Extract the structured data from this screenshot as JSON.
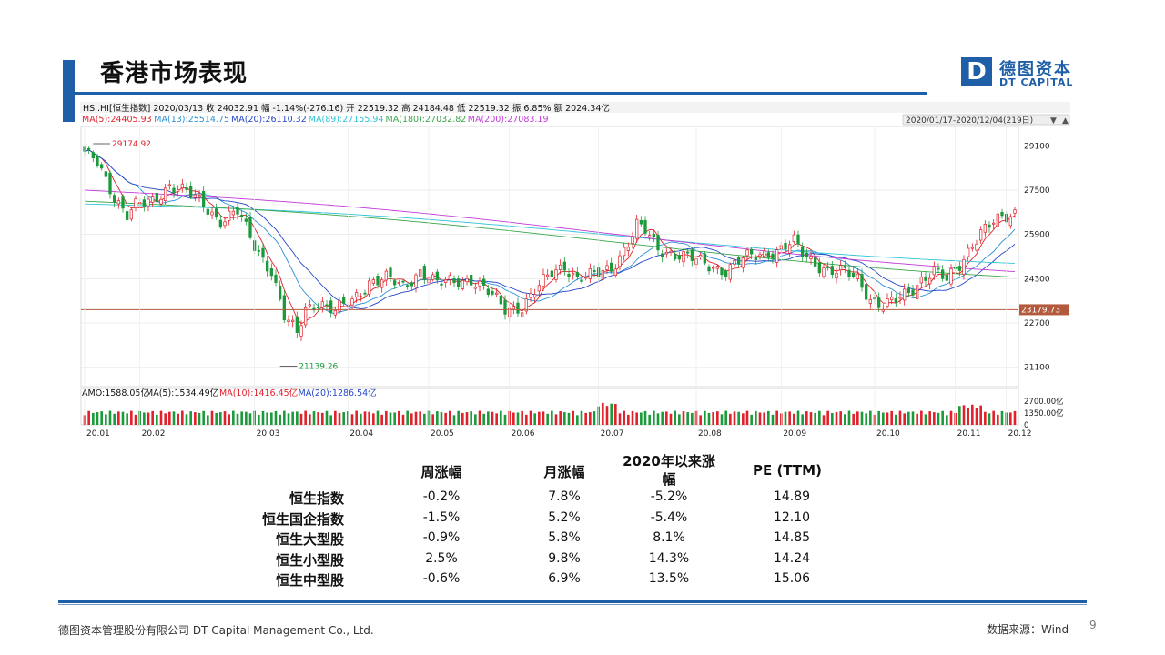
{
  "title": "香港市场表现",
  "logo": {
    "mark": "D",
    "cn": "德图资本",
    "en": "DT CAPITAL"
  },
  "info_line1": "HSI.HI[恒生指数]   2020/03/13   收 24032.91   幅 -1.14%(-276.16)   开 22519.32   高 24184.48   低 22519.32   振 6.85%   额 2024.34亿",
  "ma_legend": [
    {
      "text": "MA(5):24405.93",
      "color": "#e0212b"
    },
    {
      "text": "MA(13):25514.75",
      "color": "#2a8fd6"
    },
    {
      "text": "MA(20):26110.32",
      "color": "#2345c8"
    },
    {
      "text": "MA(89):27155.94",
      "color": "#2fc4d6"
    },
    {
      "text": "MA(180):27032.82",
      "color": "#3aa64a"
    },
    {
      "text": "MA(200):27083.19",
      "color": "#c23bd9"
    }
  ],
  "date_range": "2020/01/17-2020/12/04(219日)",
  "colors": {
    "up": "#e0212b",
    "down": "#1a9a3a",
    "ref_line": "#b45a3c",
    "brand": "#1f5fa8"
  },
  "chart_data": {
    "type": "candlestick",
    "y_ticks": [
      "29100",
      "27500",
      "25900",
      "24300",
      "22700",
      "21100"
    ],
    "ylim": [
      20400,
      29800
    ],
    "x_ticks": [
      "20.01",
      "20.02",
      "20.03",
      "20.04",
      "20.05",
      "20.06",
      "20.07",
      "20.08",
      "20.09",
      "20.10",
      "20.11",
      "20.12"
    ],
    "max_label": "29174.92",
    "min_label": "21139.26",
    "ref_value": 23179.73,
    "ref_label": "23179.73",
    "close_anchors": [
      [
        0,
        28800
      ],
      [
        3,
        28500
      ],
      [
        7,
        27300
      ],
      [
        10,
        26600
      ],
      [
        12,
        26900
      ],
      [
        16,
        27100
      ],
      [
        20,
        27700
      ],
      [
        24,
        27400
      ],
      [
        28,
        27000
      ],
      [
        32,
        26400
      ],
      [
        36,
        26700
      ],
      [
        40,
        25500
      ],
      [
        44,
        24600
      ],
      [
        47,
        22900
      ],
      [
        50,
        22300
      ],
      [
        52,
        23200
      ],
      [
        55,
        23500
      ],
      [
        59,
        23100
      ],
      [
        63,
        23500
      ],
      [
        67,
        24200
      ],
      [
        71,
        24300
      ],
      [
        75,
        24000
      ],
      [
        79,
        24600
      ],
      [
        83,
        24100
      ],
      [
        87,
        24200
      ],
      [
        91,
        24300
      ],
      [
        95,
        23800
      ],
      [
        99,
        23200
      ],
      [
        103,
        23300
      ],
      [
        107,
        24000
      ],
      [
        110,
        24500
      ],
      [
        113,
        24800
      ],
      [
        116,
        24300
      ],
      [
        120,
        24400
      ],
      [
        124,
        24700
      ],
      [
        128,
        25600
      ],
      [
        130,
        26200
      ],
      [
        132,
        26000
      ],
      [
        135,
        25400
      ],
      [
        139,
        25200
      ],
      [
        143,
        25000
      ],
      [
        147,
        24800
      ],
      [
        151,
        24600
      ],
      [
        155,
        25000
      ],
      [
        159,
        25200
      ],
      [
        163,
        25300
      ],
      [
        167,
        25600
      ],
      [
        169,
        25200
      ],
      [
        171,
        25000
      ],
      [
        175,
        24600
      ],
      [
        179,
        24500
      ],
      [
        182,
        24300
      ],
      [
        185,
        23600
      ],
      [
        188,
        23300
      ],
      [
        191,
        23500
      ],
      [
        194,
        23800
      ],
      [
        197,
        24300
      ],
      [
        200,
        24600
      ],
      [
        203,
        24200
      ],
      [
        206,
        24800
      ],
      [
        209,
        25600
      ],
      [
        211,
        26000
      ],
      [
        214,
        26300
      ],
      [
        217,
        26500
      ],
      [
        219,
        26700
      ]
    ],
    "amo_legend": [
      {
        "text": "AMO:1588.05亿",
        "color": "#111111"
      },
      {
        "text": "MA(5):1534.49亿",
        "color": "#111111"
      },
      {
        "text": "MA(10):1416.45亿",
        "color": "#e0212b"
      },
      {
        "text": "MA(20):1286.54亿",
        "color": "#2345c8"
      }
    ],
    "vol_ticks": [
      "2700.00亿",
      "1350.00亿",
      "0"
    ]
  },
  "table": {
    "headers": [
      "周涨幅",
      "月涨幅",
      "2020年以来涨幅",
      "PE (TTM)"
    ],
    "header_3_lines": [
      "2020年以来涨",
      "幅"
    ],
    "rows": [
      {
        "name": "恒生指数",
        "values": [
          "-0.2%",
          "7.8%",
          "-5.2%",
          "14.89"
        ]
      },
      {
        "name": "恒生国企指数",
        "values": [
          "-1.5%",
          "5.2%",
          "-5.4%",
          "12.10"
        ]
      },
      {
        "name": "恒生大型股",
        "values": [
          "-0.9%",
          "5.8%",
          "8.1%",
          "14.85"
        ]
      },
      {
        "name": "恒生小型股",
        "values": [
          "2.5%",
          "9.8%",
          "14.3%",
          "14.24"
        ]
      },
      {
        "name": "恒生中型股",
        "values": [
          "-0.6%",
          "6.9%",
          "13.5%",
          "15.06"
        ]
      }
    ]
  },
  "footer": {
    "company": "德图资本管理股份有限公司 DT Capital Management Co., Ltd.",
    "source": "数据来源：Wind",
    "page": "9"
  }
}
